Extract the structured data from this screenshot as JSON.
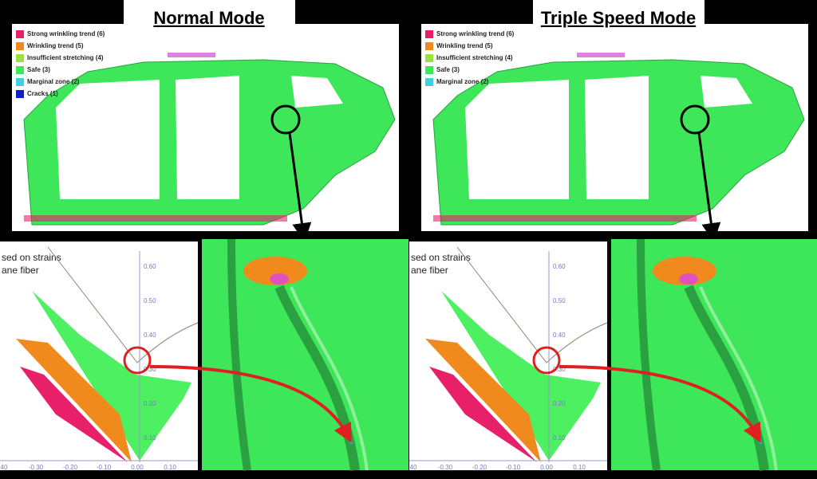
{
  "panels": [
    {
      "title": "Normal Mode",
      "legend": [
        "Strong wrinkling trend (6)",
        "Wrinkling trend (5)",
        "Insufficient stretching (4)",
        "Safe (3)",
        "Marginal zone (2)",
        "Cracks (1)"
      ],
      "plot": {
        "caption": [
          "sed on strains",
          "ane fiber"
        ],
        "yticks": [
          "0.60",
          "0.50",
          "0.40",
          "0.30",
          "0.20",
          "0.10"
        ],
        "xticks": [
          "40",
          "-0.30",
          "-0.20",
          "-0.10",
          "0.00",
          "0.10"
        ]
      }
    },
    {
      "title": "Triple Speed Mode",
      "legend": [
        "Strong wrinkling trend (6)",
        "Wrinkling trend (5)",
        "Insufficient stretching (4)",
        "Safe (3)",
        "Marginal zone (2)"
      ],
      "plot": {
        "caption": [
          "sed on strains",
          "ane fiber"
        ],
        "yticks": [
          "0.60",
          "0.50",
          "0.40",
          "0.30",
          "0.20",
          "0.10"
        ],
        "xticks": [
          "40",
          "-0.30",
          "-0.20",
          "-0.10",
          "0.00",
          "0.10"
        ]
      }
    }
  ]
}
